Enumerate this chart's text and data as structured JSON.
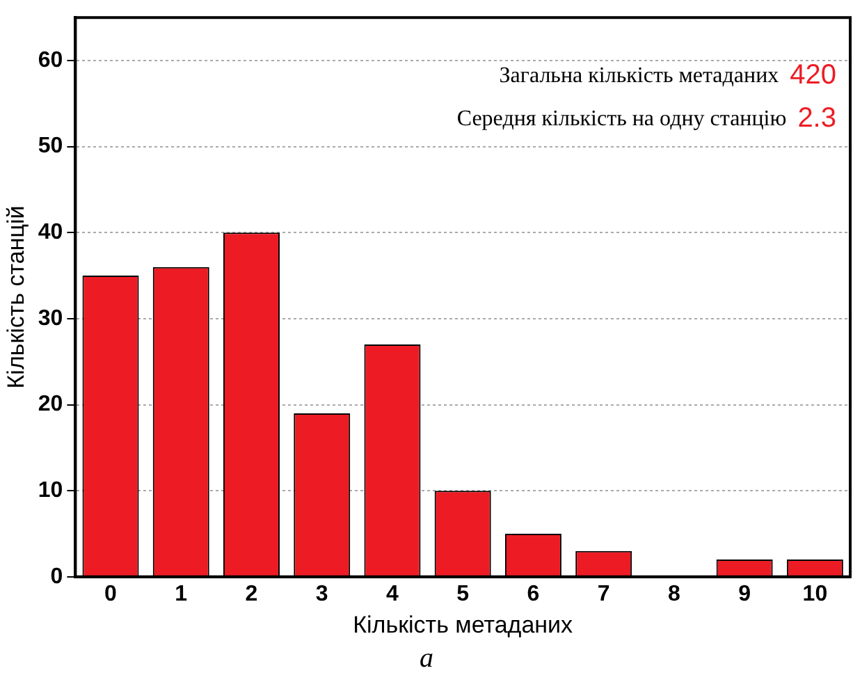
{
  "chart_data": {
    "type": "bar",
    "xlabel": "Кількість метаданих",
    "ylabel": "Кількість станцій",
    "categories": [
      "0",
      "1",
      "2",
      "3",
      "4",
      "5",
      "6",
      "7",
      "8",
      "9",
      "10"
    ],
    "values": [
      35,
      36,
      40,
      19,
      27,
      10,
      5,
      3,
      0,
      2,
      2
    ],
    "color": "#ed1c24",
    "ylim": [
      0,
      65
    ],
    "yticks": [
      0,
      10,
      20,
      30,
      40,
      50,
      60
    ],
    "grid": "y",
    "annotations": [
      "Загальна кількість метаданих 420",
      "Середня кількість на одну станцію 2.3",
      "а"
    ]
  }
}
